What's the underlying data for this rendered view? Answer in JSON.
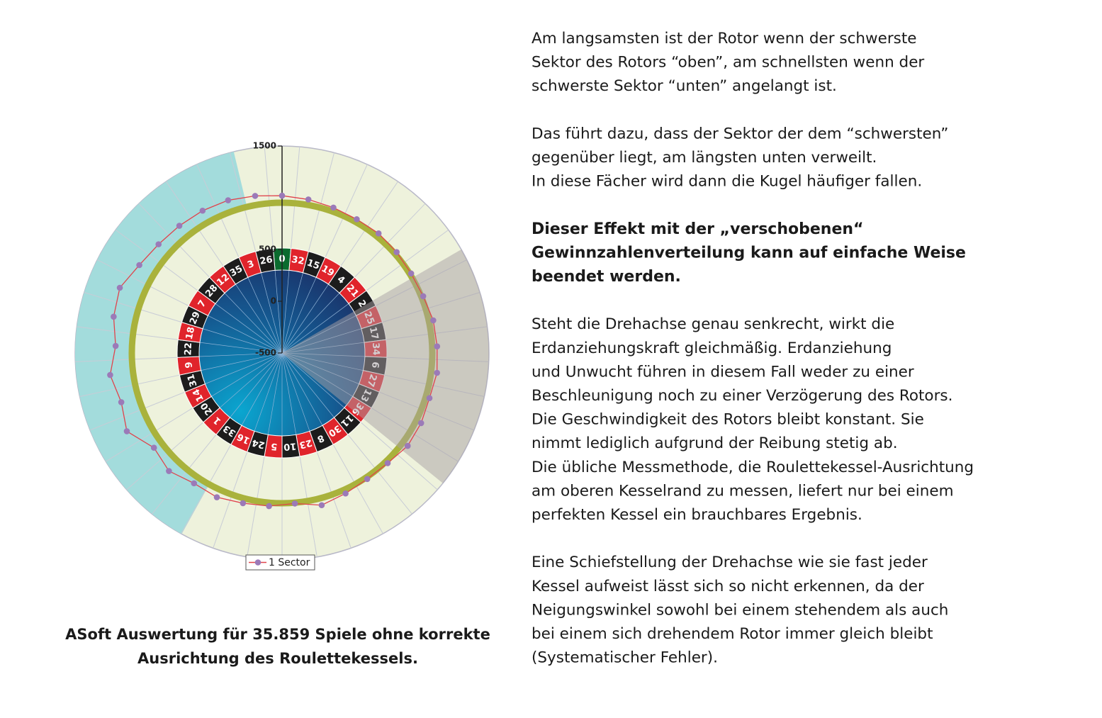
{
  "chart_data": {
    "type": "radar",
    "categories": [
      "0",
      "32",
      "15",
      "19",
      "4",
      "21",
      "2",
      "25",
      "17",
      "34",
      "6",
      "27",
      "13",
      "36",
      "11",
      "30",
      "8",
      "23",
      "10",
      "5",
      "24",
      "16",
      "33",
      "1",
      "20",
      "14",
      "31",
      "9",
      "22",
      "18",
      "29",
      "7",
      "28",
      "12",
      "35",
      "3",
      "26"
    ],
    "sector_colors": [
      "#0b6b2e",
      "#e0242b",
      "#1c1c1c",
      "#e0242b",
      "#1c1c1c",
      "#e0242b",
      "#1c1c1c",
      "#e0242b",
      "#1c1c1c",
      "#e0242b",
      "#1c1c1c",
      "#e0242b",
      "#1c1c1c",
      "#e0242b",
      "#1c1c1c",
      "#e0242b",
      "#1c1c1c",
      "#e0242b",
      "#1c1c1c",
      "#e0242b",
      "#1c1c1c",
      "#e0242b",
      "#1c1c1c",
      "#e0242b",
      "#1c1c1c",
      "#e0242b",
      "#1c1c1c",
      "#e0242b",
      "#1c1c1c",
      "#e0242b",
      "#1c1c1c",
      "#e0242b",
      "#1c1c1c",
      "#e0242b",
      "#1c1c1c",
      "#e0242b",
      "#1c1c1c"
    ],
    "series": [
      {
        "name": "1 Sector",
        "color": "#9b7ab8",
        "line_color": "#e0434c",
        "values": [
          1020,
          1005,
          990,
          980,
          985,
          975,
          965,
          970,
          995,
          1000,
          1010,
          990,
          1005,
          1010,
          975,
          970,
          990,
          1020,
          960,
          985,
          1000,
          1030,
          1020,
          1080,
          1040,
          1180,
          1125,
          1175,
          1110,
          1165,
          1190,
          1120,
          1090,
          1080,
          1075,
          1065,
          1040
        ]
      }
    ],
    "rlim": [
      -500,
      1500
    ],
    "rticks": [
      -500,
      0,
      500,
      1500
    ],
    "legend": "bottom"
  },
  "caption": {
    "lines": [
      "ASoft Auswertung für 35.859 Spiele ohne korrekte",
      "Ausrichtung des Roulettekessels."
    ]
  },
  "text": {
    "paragraphs": [
      {
        "bold": false,
        "lines": [
          "Am langsamsten ist der Rotor wenn der schwerste",
          "Sektor des Rotors “oben”, am schnellsten wenn der",
          "schwerste Sektor “unten” angelangt ist."
        ]
      },
      {
        "bold": false,
        "lines": [
          "Das führt dazu, dass der Sektor der dem “schwersten”",
          "gegenüber liegt, am längsten unten verweilt.",
          "In diese Fächer wird dann die Kugel häufiger fallen."
        ]
      },
      {
        "bold": true,
        "lines": [
          "Dieser Effekt mit der „verschobenen“",
          "Gewinnzahlenverteilung kann auf einfache Weise",
          "beendet werden."
        ]
      },
      {
        "bold": false,
        "lines": [
          "Steht die Drehachse genau senkrecht, wirkt die",
          "Erdanziehungskraft gleichmäßig. Erdanziehung",
          "und Unwucht führen in diesem Fall weder zu einer",
          "Beschleunigung noch zu einer  Verzögerung des Rotors.",
          "Die Geschwindigkeit des Rotors bleibt konstant. Sie",
          "nimmt lediglich aufgrund der Reibung stetig ab.",
          "Die übliche Messmethode, die Roulettekessel-Ausrichtung",
          "am oberen Kesselrand zu messen, liefert nur bei einem",
          "perfekten Kessel ein brauchbares Ergebnis."
        ]
      },
      {
        "bold": false,
        "lines": [
          "Eine Schiefstellung der Drehachse wie sie fast jeder",
          "Kessel aufweist lässt sich so nicht erkennen, da der",
          "Neigungswinkel sowohl bei einem stehendem als auch",
          "bei einem sich drehendem Rotor immer gleich bleibt",
          "(Systematischer Fehler)."
        ]
      }
    ]
  }
}
